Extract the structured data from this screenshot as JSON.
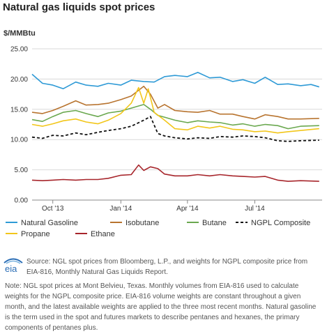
{
  "title": "Natural gas liquids spot prices",
  "unit": "$/MMBtu",
  "source": "Source: NGL spot prices from Bloomberg, L.P., and weights for NGPL composite price from EIA-816, Monthly Natural Gas Liquids Report.",
  "note": "Note: NGL spot prices at Mont Belvieu, Texas. Monthly volumes from EIA-816 used to calculate weights for the NGPL composite price. EIA-816 volume weights are constant throughout a given month, and the latest available weights are applied to the three most recent months. Natural gasoline is the term used in the spot and futures markets to describe pentanes and hexanes, the primary components of pentanes plus.",
  "logo_text": "eia",
  "chart_data": {
    "type": "line",
    "title": "Natural gas liquids spot prices",
    "ylabel": "$/MMBtu",
    "ylim": [
      0,
      25
    ],
    "yticks": [
      "0.00",
      "5.00",
      "10.00",
      "15.00",
      "20.00",
      "25.00"
    ],
    "xticks": [
      {
        "label": "Oct '13",
        "x": "2013-10-01"
      },
      {
        "label": "Jan '14",
        "x": "2014-01-01"
      },
      {
        "label": "Apr '14",
        "x": "2014-04-01"
      },
      {
        "label": "Jul '14",
        "x": "2014-07-01"
      }
    ],
    "xlim": [
      "2013-09-03",
      "2014-09-30"
    ],
    "grid": true,
    "legend_position": "bottom",
    "series": [
      {
        "name": "Natural Gasoline",
        "color": "#2e9ad6",
        "dash": "",
        "points": [
          [
            "2013-09-03",
            20.8
          ],
          [
            "2013-09-17",
            19.3
          ],
          [
            "2013-10-01",
            19.0
          ],
          [
            "2013-10-15",
            18.4
          ],
          [
            "2013-11-01",
            19.5
          ],
          [
            "2013-11-15",
            19.0
          ],
          [
            "2013-12-01",
            18.8
          ],
          [
            "2013-12-15",
            19.3
          ],
          [
            "2014-01-01",
            19.0
          ],
          [
            "2014-01-15",
            19.8
          ],
          [
            "2014-02-01",
            19.6
          ],
          [
            "2014-02-15",
            19.5
          ],
          [
            "2014-03-01",
            20.4
          ],
          [
            "2014-03-15",
            20.6
          ],
          [
            "2014-04-01",
            20.4
          ],
          [
            "2014-04-15",
            21.1
          ],
          [
            "2014-05-01",
            20.2
          ],
          [
            "2014-05-15",
            20.3
          ],
          [
            "2014-06-01",
            19.6
          ],
          [
            "2014-06-15",
            19.9
          ],
          [
            "2014-07-01",
            19.3
          ],
          [
            "2014-07-15",
            20.3
          ],
          [
            "2014-08-01",
            19.1
          ],
          [
            "2014-08-15",
            19.2
          ],
          [
            "2014-09-01",
            18.9
          ],
          [
            "2014-09-15",
            19.1
          ],
          [
            "2014-09-26",
            18.7
          ]
        ]
      },
      {
        "name": "Isobutane",
        "color": "#b8742f",
        "dash": "",
        "points": [
          [
            "2013-09-03",
            14.5
          ],
          [
            "2013-09-17",
            14.3
          ],
          [
            "2013-10-01",
            14.8
          ],
          [
            "2013-10-15",
            15.5
          ],
          [
            "2013-11-01",
            16.4
          ],
          [
            "2013-11-15",
            15.7
          ],
          [
            "2013-12-01",
            15.8
          ],
          [
            "2013-12-15",
            16.0
          ],
          [
            "2014-01-01",
            16.6
          ],
          [
            "2014-01-15",
            17.2
          ],
          [
            "2014-02-01",
            18.8
          ],
          [
            "2014-02-10",
            17.5
          ],
          [
            "2014-02-20",
            15.2
          ],
          [
            "2014-03-01",
            15.8
          ],
          [
            "2014-03-15",
            14.8
          ],
          [
            "2014-04-01",
            14.6
          ],
          [
            "2014-04-15",
            14.5
          ],
          [
            "2014-05-01",
            14.8
          ],
          [
            "2014-05-15",
            14.2
          ],
          [
            "2014-06-01",
            14.2
          ],
          [
            "2014-06-15",
            13.8
          ],
          [
            "2014-07-01",
            13.4
          ],
          [
            "2014-07-15",
            14.1
          ],
          [
            "2014-08-01",
            13.8
          ],
          [
            "2014-08-15",
            13.4
          ],
          [
            "2014-09-01",
            13.4
          ],
          [
            "2014-09-26",
            13.5
          ]
        ]
      },
      {
        "name": "Butane",
        "color": "#6aa84f",
        "dash": "",
        "points": [
          [
            "2013-09-03",
            13.3
          ],
          [
            "2013-09-17",
            13.0
          ],
          [
            "2013-10-01",
            13.8
          ],
          [
            "2013-10-15",
            14.5
          ],
          [
            "2013-11-01",
            14.8
          ],
          [
            "2013-11-15",
            14.3
          ],
          [
            "2013-12-01",
            13.8
          ],
          [
            "2013-12-15",
            14.4
          ],
          [
            "2014-01-01",
            14.7
          ],
          [
            "2014-01-15",
            15.2
          ],
          [
            "2014-02-01",
            15.8
          ],
          [
            "2014-02-10",
            15.0
          ],
          [
            "2014-02-20",
            14.0
          ],
          [
            "2014-03-01",
            13.7
          ],
          [
            "2014-03-15",
            13.2
          ],
          [
            "2014-04-01",
            12.8
          ],
          [
            "2014-04-15",
            13.1
          ],
          [
            "2014-05-01",
            12.9
          ],
          [
            "2014-05-15",
            12.8
          ],
          [
            "2014-06-01",
            12.4
          ],
          [
            "2014-06-15",
            12.6
          ],
          [
            "2014-07-01",
            12.2
          ],
          [
            "2014-07-15",
            12.5
          ],
          [
            "2014-08-01",
            12.3
          ],
          [
            "2014-08-15",
            11.8
          ],
          [
            "2014-09-01",
            12.2
          ],
          [
            "2014-09-26",
            12.3
          ]
        ]
      },
      {
        "name": "NGPL Composite",
        "color": "#111111",
        "dash": "4,3",
        "points": [
          [
            "2013-09-03",
            10.4
          ],
          [
            "2013-09-17",
            10.2
          ],
          [
            "2013-10-01",
            10.7
          ],
          [
            "2013-10-15",
            10.6
          ],
          [
            "2013-11-01",
            11.1
          ],
          [
            "2013-11-15",
            10.8
          ],
          [
            "2013-12-01",
            11.2
          ],
          [
            "2013-12-15",
            11.5
          ],
          [
            "2014-01-01",
            11.8
          ],
          [
            "2014-01-15",
            12.2
          ],
          [
            "2014-02-01",
            13.2
          ],
          [
            "2014-02-10",
            13.8
          ],
          [
            "2014-02-20",
            11.0
          ],
          [
            "2014-03-01",
            10.6
          ],
          [
            "2014-03-15",
            10.3
          ],
          [
            "2014-04-01",
            10.1
          ],
          [
            "2014-04-15",
            10.3
          ],
          [
            "2014-05-01",
            10.2
          ],
          [
            "2014-05-15",
            10.5
          ],
          [
            "2014-06-01",
            10.4
          ],
          [
            "2014-06-15",
            10.6
          ],
          [
            "2014-07-01",
            10.5
          ],
          [
            "2014-07-15",
            10.3
          ],
          [
            "2014-08-01",
            9.8
          ],
          [
            "2014-08-15",
            9.7
          ],
          [
            "2014-09-01",
            9.8
          ],
          [
            "2014-09-26",
            9.9
          ]
        ]
      },
      {
        "name": "Propane",
        "color": "#f2c61a",
        "dash": "",
        "points": [
          [
            "2013-09-03",
            12.5
          ],
          [
            "2013-09-17",
            12.2
          ],
          [
            "2013-10-01",
            12.6
          ],
          [
            "2013-10-15",
            13.1
          ],
          [
            "2013-11-01",
            13.4
          ],
          [
            "2013-11-15",
            12.9
          ],
          [
            "2013-12-01",
            12.6
          ],
          [
            "2013-12-15",
            13.2
          ],
          [
            "2014-01-01",
            14.3
          ],
          [
            "2014-01-15",
            16.0
          ],
          [
            "2014-01-25",
            18.6
          ],
          [
            "2014-02-01",
            16.0
          ],
          [
            "2014-02-07",
            18.4
          ],
          [
            "2014-02-15",
            14.5
          ],
          [
            "2014-03-01",
            13.2
          ],
          [
            "2014-03-15",
            11.8
          ],
          [
            "2014-04-01",
            11.6
          ],
          [
            "2014-04-15",
            12.2
          ],
          [
            "2014-05-01",
            11.9
          ],
          [
            "2014-05-15",
            12.2
          ],
          [
            "2014-06-01",
            11.7
          ],
          [
            "2014-06-15",
            11.6
          ],
          [
            "2014-07-01",
            11.3
          ],
          [
            "2014-07-15",
            11.4
          ],
          [
            "2014-08-01",
            11.1
          ],
          [
            "2014-08-15",
            11.3
          ],
          [
            "2014-09-01",
            11.5
          ],
          [
            "2014-09-26",
            11.8
          ]
        ]
      },
      {
        "name": "Ethane",
        "color": "#a7252b",
        "dash": "",
        "points": [
          [
            "2013-09-03",
            3.3
          ],
          [
            "2013-09-17",
            3.2
          ],
          [
            "2013-10-01",
            3.3
          ],
          [
            "2013-10-15",
            3.4
          ],
          [
            "2013-11-01",
            3.3
          ],
          [
            "2013-11-15",
            3.4
          ],
          [
            "2013-12-01",
            3.4
          ],
          [
            "2013-12-15",
            3.6
          ],
          [
            "2014-01-01",
            4.1
          ],
          [
            "2014-01-15",
            4.2
          ],
          [
            "2014-01-25",
            5.8
          ],
          [
            "2014-02-01",
            4.9
          ],
          [
            "2014-02-10",
            5.5
          ],
          [
            "2014-02-20",
            5.2
          ],
          [
            "2014-03-01",
            4.3
          ],
          [
            "2014-03-15",
            4.0
          ],
          [
            "2014-04-01",
            4.0
          ],
          [
            "2014-04-15",
            4.2
          ],
          [
            "2014-05-01",
            4.0
          ],
          [
            "2014-05-15",
            4.2
          ],
          [
            "2014-06-01",
            4.0
          ],
          [
            "2014-06-15",
            3.9
          ],
          [
            "2014-07-01",
            3.8
          ],
          [
            "2014-07-15",
            3.9
          ],
          [
            "2014-08-01",
            3.3
          ],
          [
            "2014-08-15",
            3.1
          ],
          [
            "2014-09-01",
            3.2
          ],
          [
            "2014-09-26",
            3.1
          ]
        ]
      }
    ]
  }
}
